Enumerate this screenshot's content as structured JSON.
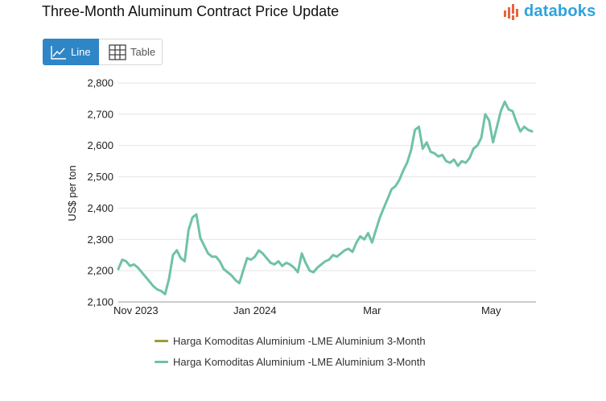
{
  "title": "Three-Month Aluminum Contract Price Update",
  "brand": {
    "name": "databoks",
    "color": "#2ea3dc",
    "accent": "#e8643c"
  },
  "toggle": {
    "line_label": "Line",
    "table_label": "Table",
    "active_color": "#2f86c6"
  },
  "chart_data": {
    "type": "line",
    "title": "Three-Month Aluminum Contract Price Update",
    "xlabel": "",
    "ylabel": "US$ per ton",
    "ylim": [
      2100,
      2800
    ],
    "yticks": [
      2100,
      2200,
      2300,
      2400,
      2500,
      2600,
      2700,
      2800
    ],
    "ytick_labels": [
      "2,100",
      "2,200",
      "2,300",
      "2,400",
      "2,500",
      "2,600",
      "2,700",
      "2,800"
    ],
    "x_range": [
      "2023-10-23",
      "2024-05-24"
    ],
    "x_tick_labels": [
      {
        "label": "Nov 2023",
        "date": "2023-11-01"
      },
      {
        "label": "Jan 2024",
        "date": "2024-01-01"
      },
      {
        "label": "Mar",
        "date": "2024-03-01"
      },
      {
        "label": "May",
        "date": "2024-05-01"
      }
    ],
    "grid": true,
    "series": [
      {
        "name": "Harga Komoditas Aluminium -LME Aluminium 3-Month",
        "color": "#a09a33",
        "dates": [],
        "values": []
      },
      {
        "name": "Harga Komoditas Aluminium -LME Aluminium 3-Month",
        "color": "#6fc2a7",
        "dates": [
          "2023-10-23",
          "2023-10-25",
          "2023-10-27",
          "2023-10-29",
          "2023-10-31",
          "2023-11-02",
          "2023-11-04",
          "2023-11-06",
          "2023-11-08",
          "2023-11-10",
          "2023-11-12",
          "2023-11-14",
          "2023-11-16",
          "2023-11-18",
          "2023-11-20",
          "2023-11-22",
          "2023-11-24",
          "2023-11-26",
          "2023-11-28",
          "2023-11-30",
          "2023-12-02",
          "2023-12-04",
          "2023-12-06",
          "2023-12-08",
          "2023-12-10",
          "2023-12-12",
          "2023-12-14",
          "2023-12-16",
          "2023-12-18",
          "2023-12-20",
          "2023-12-22",
          "2023-12-24",
          "2023-12-26",
          "2023-12-28",
          "2023-12-30",
          "2024-01-01",
          "2024-01-03",
          "2024-01-05",
          "2024-01-07",
          "2024-01-09",
          "2024-01-11",
          "2024-01-13",
          "2024-01-15",
          "2024-01-17",
          "2024-01-19",
          "2024-01-21",
          "2024-01-23",
          "2024-01-25",
          "2024-01-27",
          "2024-01-29",
          "2024-01-31",
          "2024-02-02",
          "2024-02-04",
          "2024-02-06",
          "2024-02-08",
          "2024-02-10",
          "2024-02-12",
          "2024-02-14",
          "2024-02-16",
          "2024-02-18",
          "2024-02-20",
          "2024-02-22",
          "2024-02-24",
          "2024-02-26",
          "2024-02-28",
          "2024-03-01",
          "2024-03-03",
          "2024-03-05",
          "2024-03-07",
          "2024-03-09",
          "2024-03-11",
          "2024-03-13",
          "2024-03-15",
          "2024-03-17",
          "2024-03-19",
          "2024-03-21",
          "2024-03-23",
          "2024-03-25",
          "2024-03-27",
          "2024-03-29",
          "2024-03-31",
          "2024-04-02",
          "2024-04-04",
          "2024-04-06",
          "2024-04-08",
          "2024-04-10",
          "2024-04-12",
          "2024-04-14",
          "2024-04-16",
          "2024-04-18",
          "2024-04-20",
          "2024-04-22",
          "2024-04-24",
          "2024-04-26",
          "2024-04-28",
          "2024-04-30",
          "2024-05-02",
          "2024-05-04",
          "2024-05-06",
          "2024-05-08",
          "2024-05-10",
          "2024-05-12",
          "2024-05-14",
          "2024-05-16",
          "2024-05-18",
          "2024-05-20",
          "2024-05-22"
        ],
        "values": [
          2205,
          2235,
          2230,
          2215,
          2220,
          2210,
          2195,
          2180,
          2165,
          2150,
          2140,
          2135,
          2125,
          2175,
          2250,
          2265,
          2240,
          2230,
          2330,
          2370,
          2380,
          2305,
          2280,
          2255,
          2245,
          2245,
          2230,
          2205,
          2195,
          2185,
          2170,
          2160,
          2200,
          2240,
          2235,
          2245,
          2265,
          2255,
          2240,
          2225,
          2220,
          2230,
          2215,
          2225,
          2220,
          2210,
          2195,
          2255,
          2225,
          2200,
          2195,
          2210,
          2220,
          2230,
          2235,
          2250,
          2245,
          2255,
          2265,
          2270,
          2260,
          2290,
          2310,
          2300,
          2320,
          2290,
          2330,
          2370,
          2400,
          2430,
          2460,
          2470,
          2490,
          2520,
          2545,
          2585,
          2650,
          2660,
          2590,
          2610,
          2580,
          2575,
          2565,
          2570,
          2550,
          2545,
          2555,
          2535,
          2550,
          2545,
          2560,
          2590,
          2600,
          2625,
          2700,
          2680,
          2610,
          2660,
          2710,
          2740,
          2715,
          2710,
          2675,
          2645,
          2660,
          2650,
          2645
        ]
      }
    ]
  }
}
